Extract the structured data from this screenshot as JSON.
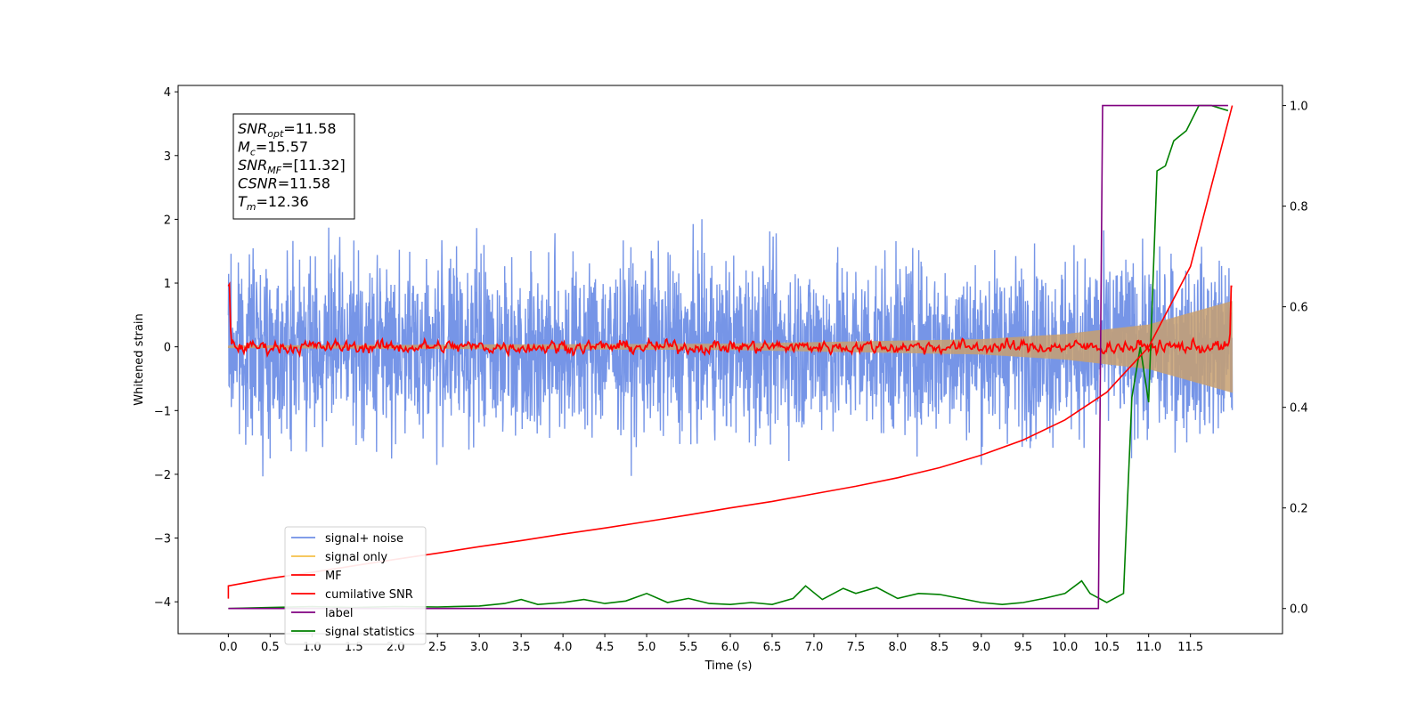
{
  "chart_data": {
    "type": "line",
    "title": "",
    "xlabel": "Time (s)",
    "ylabel": "Whitened strain",
    "xlim": [
      -0.6,
      12.6
    ],
    "ylim": [
      -4.5,
      4.1
    ],
    "y2lim": [
      -0.05,
      1.04
    ],
    "x_ticks": [
      "0.0",
      "0.5",
      "1.0",
      "1.5",
      "2.0",
      "2.5",
      "3.0",
      "3.5",
      "4.0",
      "4.5",
      "5.0",
      "5.5",
      "6.0",
      "6.5",
      "7.0",
      "7.5",
      "8.0",
      "8.5",
      "9.0",
      "9.5",
      "10.0",
      "10.5",
      "11.0",
      "11.5"
    ],
    "y_ticks": [
      "4",
      "3",
      "2",
      "1",
      "0",
      "−1",
      "−2",
      "−3",
      "−4"
    ],
    "y2_ticks": [
      "0.0",
      "0.2",
      "0.4",
      "0.6",
      "0.8",
      "1.0"
    ],
    "grid": false,
    "legend_position": "lower-left",
    "annotation": {
      "lines": [
        {
          "sym": "SNR",
          "sub": "opt",
          "val": "=11.58"
        },
        {
          "sym": "M",
          "sub": "c",
          "val": "=15.57"
        },
        {
          "sym": "SNR",
          "sub": "MF",
          "val": "=[11.32]"
        },
        {
          "sym": "CSNR",
          "sub": "",
          "val": "=11.58"
        },
        {
          "sym": "T",
          "sub": "m",
          "val": "=12.36"
        }
      ]
    },
    "series": [
      {
        "name": "signal+ noise",
        "color": "#6f8fe6",
        "axis": "left",
        "style": "noise",
        "x_range": [
          0,
          12
        ],
        "amplitude_range": [
          -3.6,
          3.7
        ]
      },
      {
        "name": "signal only",
        "color": "#f5c04a",
        "axis": "left",
        "style": "chirp",
        "x_range": [
          0,
          12
        ],
        "envelope": [
          [
            0,
            0.02
          ],
          [
            6,
            0.05
          ],
          [
            9,
            0.12
          ],
          [
            10,
            0.2
          ],
          [
            11,
            0.35
          ],
          [
            12,
            0.72
          ]
        ]
      },
      {
        "name": "MF",
        "color": "#ff0000",
        "axis": "left",
        "style": "mf",
        "x_range": [
          0,
          12
        ]
      },
      {
        "name": "cumilative SNR",
        "color": "#ff0000",
        "axis": "right",
        "x": [
          0,
          0.5,
          1,
          1.5,
          2,
          2.5,
          3,
          3.5,
          4,
          4.5,
          5,
          5.5,
          6,
          6.5,
          7,
          7.5,
          8,
          8.5,
          9,
          9.5,
          10,
          10.5,
          11,
          11.5,
          12
        ],
        "values": [
          0.045,
          0.06,
          0.072,
          0.085,
          0.098,
          0.11,
          0.123,
          0.135,
          0.148,
          0.16,
          0.173,
          0.186,
          0.2,
          0.213,
          0.228,
          0.243,
          0.26,
          0.28,
          0.305,
          0.335,
          0.375,
          0.43,
          0.52,
          0.68,
          1.0
        ]
      },
      {
        "name": "label",
        "color": "#800080",
        "axis": "right",
        "x": [
          0,
          10.4,
          10.4,
          10.45,
          11.95
        ],
        "values": [
          0,
          0,
          0,
          1.0,
          1.0
        ]
      },
      {
        "name": "signal statistics",
        "color": "#008000",
        "axis": "right",
        "x": [
          0,
          0.5,
          1,
          1.5,
          2,
          2.5,
          3,
          3.3,
          3.5,
          3.7,
          4,
          4.25,
          4.5,
          4.75,
          5,
          5.25,
          5.5,
          5.75,
          6,
          6.25,
          6.5,
          6.75,
          6.9,
          7.1,
          7.35,
          7.5,
          7.75,
          8,
          8.25,
          8.5,
          8.75,
          9,
          9.25,
          9.5,
          9.75,
          10,
          10.2,
          10.3,
          10.5,
          10.7,
          10.8,
          10.9,
          11,
          11.1,
          11.2,
          11.3,
          11.45,
          11.6,
          11.75,
          11.95
        ],
        "values": [
          0.0,
          0.002,
          0.004,
          0.002,
          0.004,
          0.003,
          0.005,
          0.01,
          0.018,
          0.008,
          0.012,
          0.018,
          0.01,
          0.015,
          0.03,
          0.012,
          0.02,
          0.01,
          0.008,
          0.012,
          0.008,
          0.02,
          0.045,
          0.018,
          0.04,
          0.03,
          0.042,
          0.02,
          0.03,
          0.028,
          0.02,
          0.012,
          0.008,
          0.012,
          0.02,
          0.03,
          0.055,
          0.03,
          0.012,
          0.03,
          0.42,
          0.52,
          0.41,
          0.87,
          0.88,
          0.93,
          0.95,
          1.0,
          1.0,
          0.99
        ]
      }
    ]
  }
}
